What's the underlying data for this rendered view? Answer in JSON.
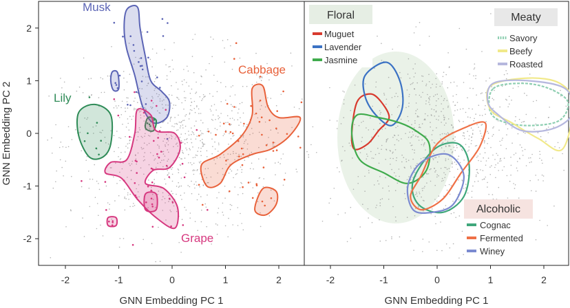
{
  "chart_data": [
    {
      "type": "scatter",
      "panel": "left",
      "xlabel": "GNN Embedding PC 1",
      "ylabel": "GNN Embedding PC 2",
      "xlim": [
        -2.5,
        2.5
      ],
      "ylim": [
        -2.5,
        2.5
      ],
      "xticks": [
        -2,
        -1,
        0,
        1,
        2
      ],
      "yticks": [
        -2,
        -1,
        0,
        1,
        2
      ],
      "grid": false,
      "series": [
        {
          "name": "Musk",
          "color": "#5b64b5",
          "regions": [
            [
              [
                -0.85,
                2.35
              ],
              [
                -0.65,
                2.4
              ],
              [
                -0.6,
                2.0
              ],
              [
                -0.5,
                1.45
              ],
              [
                -0.4,
                1.0
              ],
              [
                -0.2,
                0.8
              ],
              [
                -0.05,
                0.6
              ],
              [
                -0.1,
                0.3
              ],
              [
                -0.35,
                0.2
              ],
              [
                -0.55,
                0.5
              ],
              [
                -0.7,
                1.1
              ],
              [
                -0.85,
                1.6
              ],
              [
                -0.9,
                2.0
              ]
            ],
            [
              [
                -1.12,
                1.17
              ],
              [
                -1.02,
                1.15
              ],
              [
                -1.0,
                0.85
              ],
              [
                -1.1,
                0.82
              ],
              [
                -1.15,
                1.0
              ]
            ]
          ]
        },
        {
          "name": "Lily",
          "color": "#2e8b57",
          "regions": [
            [
              [
                -1.75,
                0.4
              ],
              [
                -1.45,
                0.55
              ],
              [
                -1.15,
                0.35
              ],
              [
                -1.15,
                -0.2
              ],
              [
                -1.3,
                -0.45
              ],
              [
                -1.55,
                -0.45
              ],
              [
                -1.75,
                -0.05
              ]
            ],
            [
              [
                -0.45,
                0.3
              ],
              [
                -0.3,
                0.25
              ],
              [
                -0.35,
                0.05
              ],
              [
                -0.5,
                0.1
              ]
            ]
          ]
        },
        {
          "name": "Grape",
          "color": "#d6387f",
          "regions": [
            [
              [
                -0.65,
                0.45
              ],
              [
                -0.4,
                0.35
              ],
              [
                -0.3,
                0.05
              ],
              [
                0.05,
                0.0
              ],
              [
                0.15,
                -0.3
              ],
              [
                -0.05,
                -0.65
              ],
              [
                -0.35,
                -0.7
              ],
              [
                -0.5,
                -0.95
              ],
              [
                -0.15,
                -1.05
              ],
              [
                0.1,
                -1.4
              ],
              [
                0.05,
                -1.8
              ],
              [
                -0.3,
                -1.6
              ],
              [
                -0.65,
                -1.25
              ],
              [
                -0.95,
                -0.85
              ],
              [
                -1.25,
                -0.75
              ],
              [
                -1.15,
                -0.55
              ],
              [
                -0.85,
                -0.5
              ],
              [
                -0.7,
                0.0
              ]
            ],
            [
              [
                -1.2,
                -1.6
              ],
              [
                -1.05,
                -1.6
              ],
              [
                -1.05,
                -1.75
              ],
              [
                -1.2,
                -1.75
              ]
            ],
            [
              [
                -0.5,
                -1.15
              ],
              [
                -0.3,
                -1.15
              ],
              [
                -0.3,
                -1.45
              ],
              [
                -0.5,
                -1.45
              ]
            ]
          ]
        },
        {
          "name": "Cabbage",
          "color": "#e8613a",
          "regions": [
            [
              [
                1.5,
                0.85
              ],
              [
                1.7,
                0.9
              ],
              [
                1.8,
                0.5
              ],
              [
                2.0,
                0.3
              ],
              [
                2.4,
                0.3
              ],
              [
                2.2,
                -0.05
              ],
              [
                1.85,
                -0.3
              ],
              [
                1.5,
                -0.4
              ],
              [
                1.1,
                -0.6
              ],
              [
                0.9,
                -0.95
              ],
              [
                0.65,
                -1.0
              ],
              [
                0.55,
                -0.6
              ],
              [
                0.9,
                -0.4
              ],
              [
                1.3,
                -0.05
              ],
              [
                1.5,
                0.35
              ]
            ],
            [
              [
                1.7,
                -1.05
              ],
              [
                1.95,
                -1.1
              ],
              [
                1.95,
                -1.35
              ],
              [
                1.75,
                -1.55
              ],
              [
                1.55,
                -1.45
              ]
            ]
          ]
        }
      ],
      "annotations": [
        "Musk",
        "Lily",
        "Grape",
        "Cabbage"
      ]
    },
    {
      "type": "scatter",
      "panel": "right",
      "xlabel": "GNN Embedding PC 1",
      "ylabel": "",
      "xlim": [
        -2.5,
        2.5
      ],
      "ylim": [
        -2.5,
        2.5
      ],
      "xticks": [
        -2,
        -1,
        0,
        1,
        2
      ],
      "grid": false,
      "legends": [
        {
          "title": "Floral",
          "placement": "top-left",
          "fill": "#e6eee4",
          "entries": [
            {
              "name": "Muguet",
              "color": "#d83a2e"
            },
            {
              "name": "Lavender",
              "color": "#3b72c4"
            },
            {
              "name": "Jasmine",
              "color": "#3fab4c"
            }
          ]
        },
        {
          "title": "Meaty",
          "placement": "top-right",
          "fill": "#e8e8e8",
          "entries": [
            {
              "name": "Savory",
              "color": "#8fcfb2",
              "style": "dashed"
            },
            {
              "name": "Beefy",
              "color": "#f1e98a"
            },
            {
              "name": "Roasted",
              "color": "#b6b8de"
            }
          ]
        },
        {
          "title": "Alcoholic",
          "placement": "bottom-right",
          "fill": "#f6e3e0",
          "entries": [
            {
              "name": "Cognac",
              "color": "#3fa77b"
            },
            {
              "name": "Fermented",
              "color": "#ef7046"
            },
            {
              "name": "Winey",
              "color": "#7b8ad0"
            }
          ]
        }
      ],
      "series": [
        {
          "name": "Muguet",
          "color": "#d83a2e",
          "regions": [
            [
              [
                -1.5,
                0.6
              ],
              [
                -1.25,
                0.75
              ],
              [
                -1.05,
                0.6
              ],
              [
                -0.9,
                0.3
              ],
              [
                -1.1,
                0.05
              ],
              [
                -1.3,
                -0.2
              ],
              [
                -1.55,
                -0.3
              ],
              [
                -1.6,
                0.0
              ]
            ]
          ]
        },
        {
          "name": "Lavender",
          "color": "#3b72c4",
          "regions": [
            [
              [
                -1.35,
                1.1
              ],
              [
                -0.95,
                1.35
              ],
              [
                -0.7,
                1.0
              ],
              [
                -0.65,
                0.5
              ],
              [
                -0.85,
                0.15
              ],
              [
                -1.15,
                0.35
              ],
              [
                -1.35,
                0.7
              ]
            ]
          ]
        },
        {
          "name": "Jasmine",
          "color": "#3fab4c",
          "regions": [
            [
              [
                -1.5,
                0.35
              ],
              [
                -1.1,
                0.3
              ],
              [
                -0.7,
                0.2
              ],
              [
                -0.4,
                0.05
              ],
              [
                -0.15,
                -0.2
              ],
              [
                -0.2,
                -0.7
              ],
              [
                -0.55,
                -0.95
              ],
              [
                -1.0,
                -0.75
              ],
              [
                -1.45,
                -0.5
              ],
              [
                -1.6,
                0.0
              ]
            ]
          ]
        },
        {
          "name": "Savory",
          "color": "#8fcfb2",
          "regions": [
            [
              [
                1.05,
                0.85
              ],
              [
                1.6,
                0.95
              ],
              [
                2.1,
                0.85
              ],
              [
                2.45,
                0.6
              ],
              [
                2.3,
                0.25
              ],
              [
                1.8,
                0.15
              ],
              [
                1.3,
                0.2
              ],
              [
                1.0,
                0.4
              ]
            ]
          ]
        },
        {
          "name": "Beefy",
          "color": "#f1e98a",
          "regions": [
            [
              [
                1.0,
                0.9
              ],
              [
                1.7,
                1.05
              ],
              [
                2.3,
                0.95
              ],
              [
                2.55,
                0.55
              ],
              [
                2.35,
                -0.3
              ],
              [
                1.9,
                -0.1
              ],
              [
                1.4,
                0.2
              ],
              [
                1.0,
                0.45
              ]
            ]
          ]
        },
        {
          "name": "Roasted",
          "color": "#b6b8de",
          "regions": [
            [
              [
                1.05,
                0.95
              ],
              [
                1.7,
                1.0
              ],
              [
                2.4,
                0.85
              ],
              [
                2.55,
                0.4
              ],
              [
                2.2,
                0.1
              ],
              [
                1.6,
                0.05
              ],
              [
                1.15,
                0.35
              ],
              [
                0.95,
                0.6
              ]
            ]
          ]
        },
        {
          "name": "Cognac",
          "color": "#3fa77b",
          "regions": [
            [
              [
                -0.05,
                -0.3
              ],
              [
                0.4,
                -0.2
              ],
              [
                0.6,
                -0.6
              ],
              [
                0.5,
                -1.2
              ],
              [
                0.1,
                -1.5
              ],
              [
                -0.35,
                -1.35
              ],
              [
                -0.45,
                -0.9
              ]
            ]
          ]
        },
        {
          "name": "Fermented",
          "color": "#ef7046",
          "regions": [
            [
              [
                0.0,
                -0.2
              ],
              [
                0.5,
                0.1
              ],
              [
                0.9,
                0.2
              ],
              [
                0.8,
                -0.25
              ],
              [
                0.45,
                -0.75
              ],
              [
                0.1,
                -1.25
              ],
              [
                -0.3,
                -1.45
              ],
              [
                -0.5,
                -1.2
              ],
              [
                -0.3,
                -0.8
              ]
            ]
          ]
        },
        {
          "name": "Winey",
          "color": "#7b8ad0",
          "regions": [
            [
              [
                -0.3,
                -0.55
              ],
              [
                0.2,
                -0.4
              ],
              [
                0.5,
                -0.8
              ],
              [
                0.3,
                -1.35
              ],
              [
                -0.1,
                -1.5
              ],
              [
                -0.45,
                -1.45
              ],
              [
                -0.55,
                -1.0
              ]
            ]
          ]
        }
      ]
    }
  ]
}
